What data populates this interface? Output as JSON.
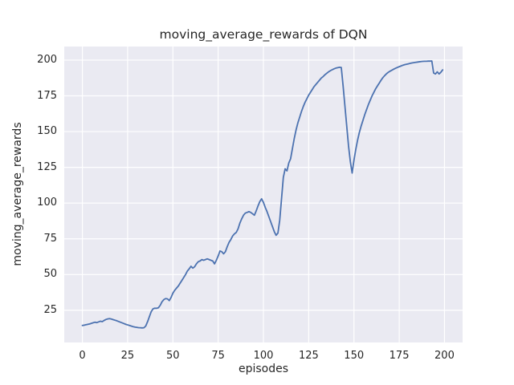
{
  "chart_data": {
    "type": "line",
    "title": "moving_average_rewards of DQN",
    "xlabel": "episodes",
    "ylabel": "moving_average_rewards",
    "xlim": [
      -10,
      210
    ],
    "ylim": [
      2.5,
      209.5
    ],
    "xticks": [
      0,
      25,
      50,
      75,
      100,
      125,
      150,
      175,
      200
    ],
    "yticks": [
      25,
      50,
      75,
      100,
      125,
      150,
      175,
      200
    ],
    "grid": true,
    "legend_position": "none",
    "style": {
      "figure_bg": "#ffffff",
      "axes_bg": "#eaeaf2",
      "grid_color": "#ffffff",
      "line_color": "#4c72b0",
      "text_color": "#262626"
    },
    "series": [
      {
        "name": "DQN moving average rewards",
        "x0": 0,
        "dx": 1,
        "y": [
          14.4,
          14.6,
          14.9,
          15.2,
          15.5,
          15.9,
          16.3,
          16.7,
          16.4,
          16.9,
          17.4,
          17.1,
          17.9,
          18.6,
          19.0,
          19.2,
          18.9,
          18.5,
          18.1,
          17.7,
          17.2,
          16.7,
          16.2,
          15.7,
          15.2,
          14.8,
          14.4,
          14.0,
          13.6,
          13.3,
          13.1,
          12.9,
          12.8,
          12.7,
          12.8,
          14.0,
          17.0,
          20.5,
          24.0,
          26.0,
          26.5,
          26.4,
          26.8,
          28.5,
          31.0,
          32.5,
          33.2,
          33.0,
          31.8,
          34.0,
          37.0,
          39.0,
          40.5,
          42.0,
          44.0,
          46.0,
          48.0,
          50.0,
          52.5,
          54.0,
          55.8,
          54.5,
          55.5,
          57.5,
          59.0,
          59.5,
          60.5,
          60.0,
          60.5,
          61.0,
          60.5,
          60.0,
          59.5,
          57.5,
          60.0,
          63.0,
          66.5,
          66.0,
          64.5,
          66.0,
          69.5,
          72.5,
          74.5,
          77.0,
          78.5,
          79.5,
          82.0,
          86.0,
          89.0,
          91.5,
          93.0,
          93.5,
          94.0,
          93.5,
          92.5,
          91.5,
          94.5,
          98.0,
          101.0,
          103.0,
          100.5,
          97.0,
          94.0,
          90.5,
          87.0,
          83.5,
          80.0,
          77.5,
          79.0,
          88.0,
          103.0,
          118.0,
          124.0,
          122.5,
          128.0,
          131.0,
          138.0,
          145.0,
          151.0,
          156.0,
          160.0,
          164.0,
          167.5,
          170.5,
          173.0,
          175.5,
          177.5,
          179.5,
          181.5,
          183.0,
          184.5,
          186.0,
          187.5,
          188.5,
          189.8,
          190.8,
          191.8,
          192.6,
          193.3,
          193.9,
          194.4,
          194.7,
          195.0,
          194.8,
          182.0,
          168.0,
          154.0,
          140.0,
          129.0,
          121.0,
          130.0,
          137.5,
          144.0,
          149.5,
          154.0,
          158.0,
          162.0,
          165.5,
          169.0,
          172.0,
          175.0,
          177.5,
          180.0,
          182.0,
          184.0,
          186.0,
          187.8,
          189.2,
          190.5,
          191.5,
          192.3,
          193.0,
          193.7,
          194.3,
          194.9,
          195.4,
          195.9,
          196.4,
          196.8,
          197.1,
          197.4,
          197.7,
          198.0,
          198.2,
          198.4,
          198.6,
          198.8,
          199.0,
          199.1,
          199.2,
          199.2,
          199.3,
          199.3,
          199.4,
          191.0,
          190.3,
          191.8,
          190.3,
          191.5,
          193.2
        ]
      }
    ]
  }
}
